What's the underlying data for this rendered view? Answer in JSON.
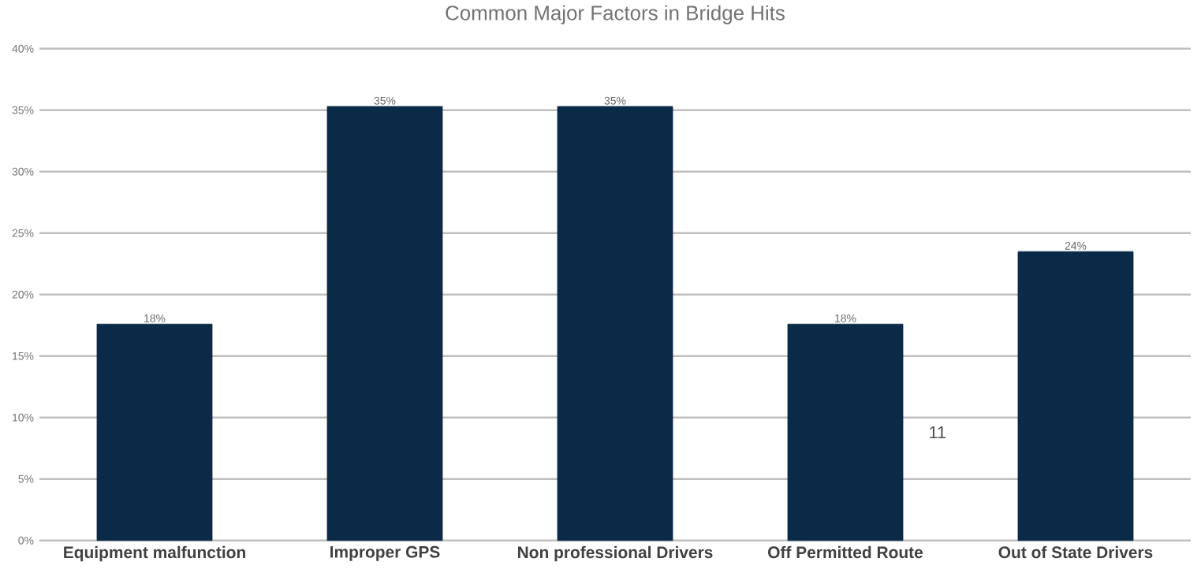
{
  "chart_data": {
    "type": "bar",
    "title": "Common Major Factors in Bridge Hits",
    "categories": [
      "Equipment malfunction",
      "Improper GPS",
      "Non professional Drivers",
      "Off Permitted Route",
      "Out of State Drivers"
    ],
    "values": [
      17.6,
      35.3,
      35.3,
      17.6,
      23.5
    ],
    "value_labels": [
      "18%",
      "35%",
      "35%",
      "18%",
      "24%"
    ],
    "color": "#0a2a47",
    "ylim": [
      0,
      40
    ],
    "yticks": [
      {
        "value": 0,
        "label": "0%"
      },
      {
        "value": 5,
        "label": "5%"
      },
      {
        "value": 10,
        "label": "10%"
      },
      {
        "value": 15,
        "label": "15%"
      },
      {
        "value": 20,
        "label": "20%"
      },
      {
        "value": 25,
        "label": "25%"
      },
      {
        "value": 30,
        "label": "30%"
      },
      {
        "value": 35,
        "label": "35%"
      },
      {
        "value": 40,
        "label": "40%"
      }
    ],
    "grid": "y",
    "annotations": [
      "11"
    ]
  }
}
